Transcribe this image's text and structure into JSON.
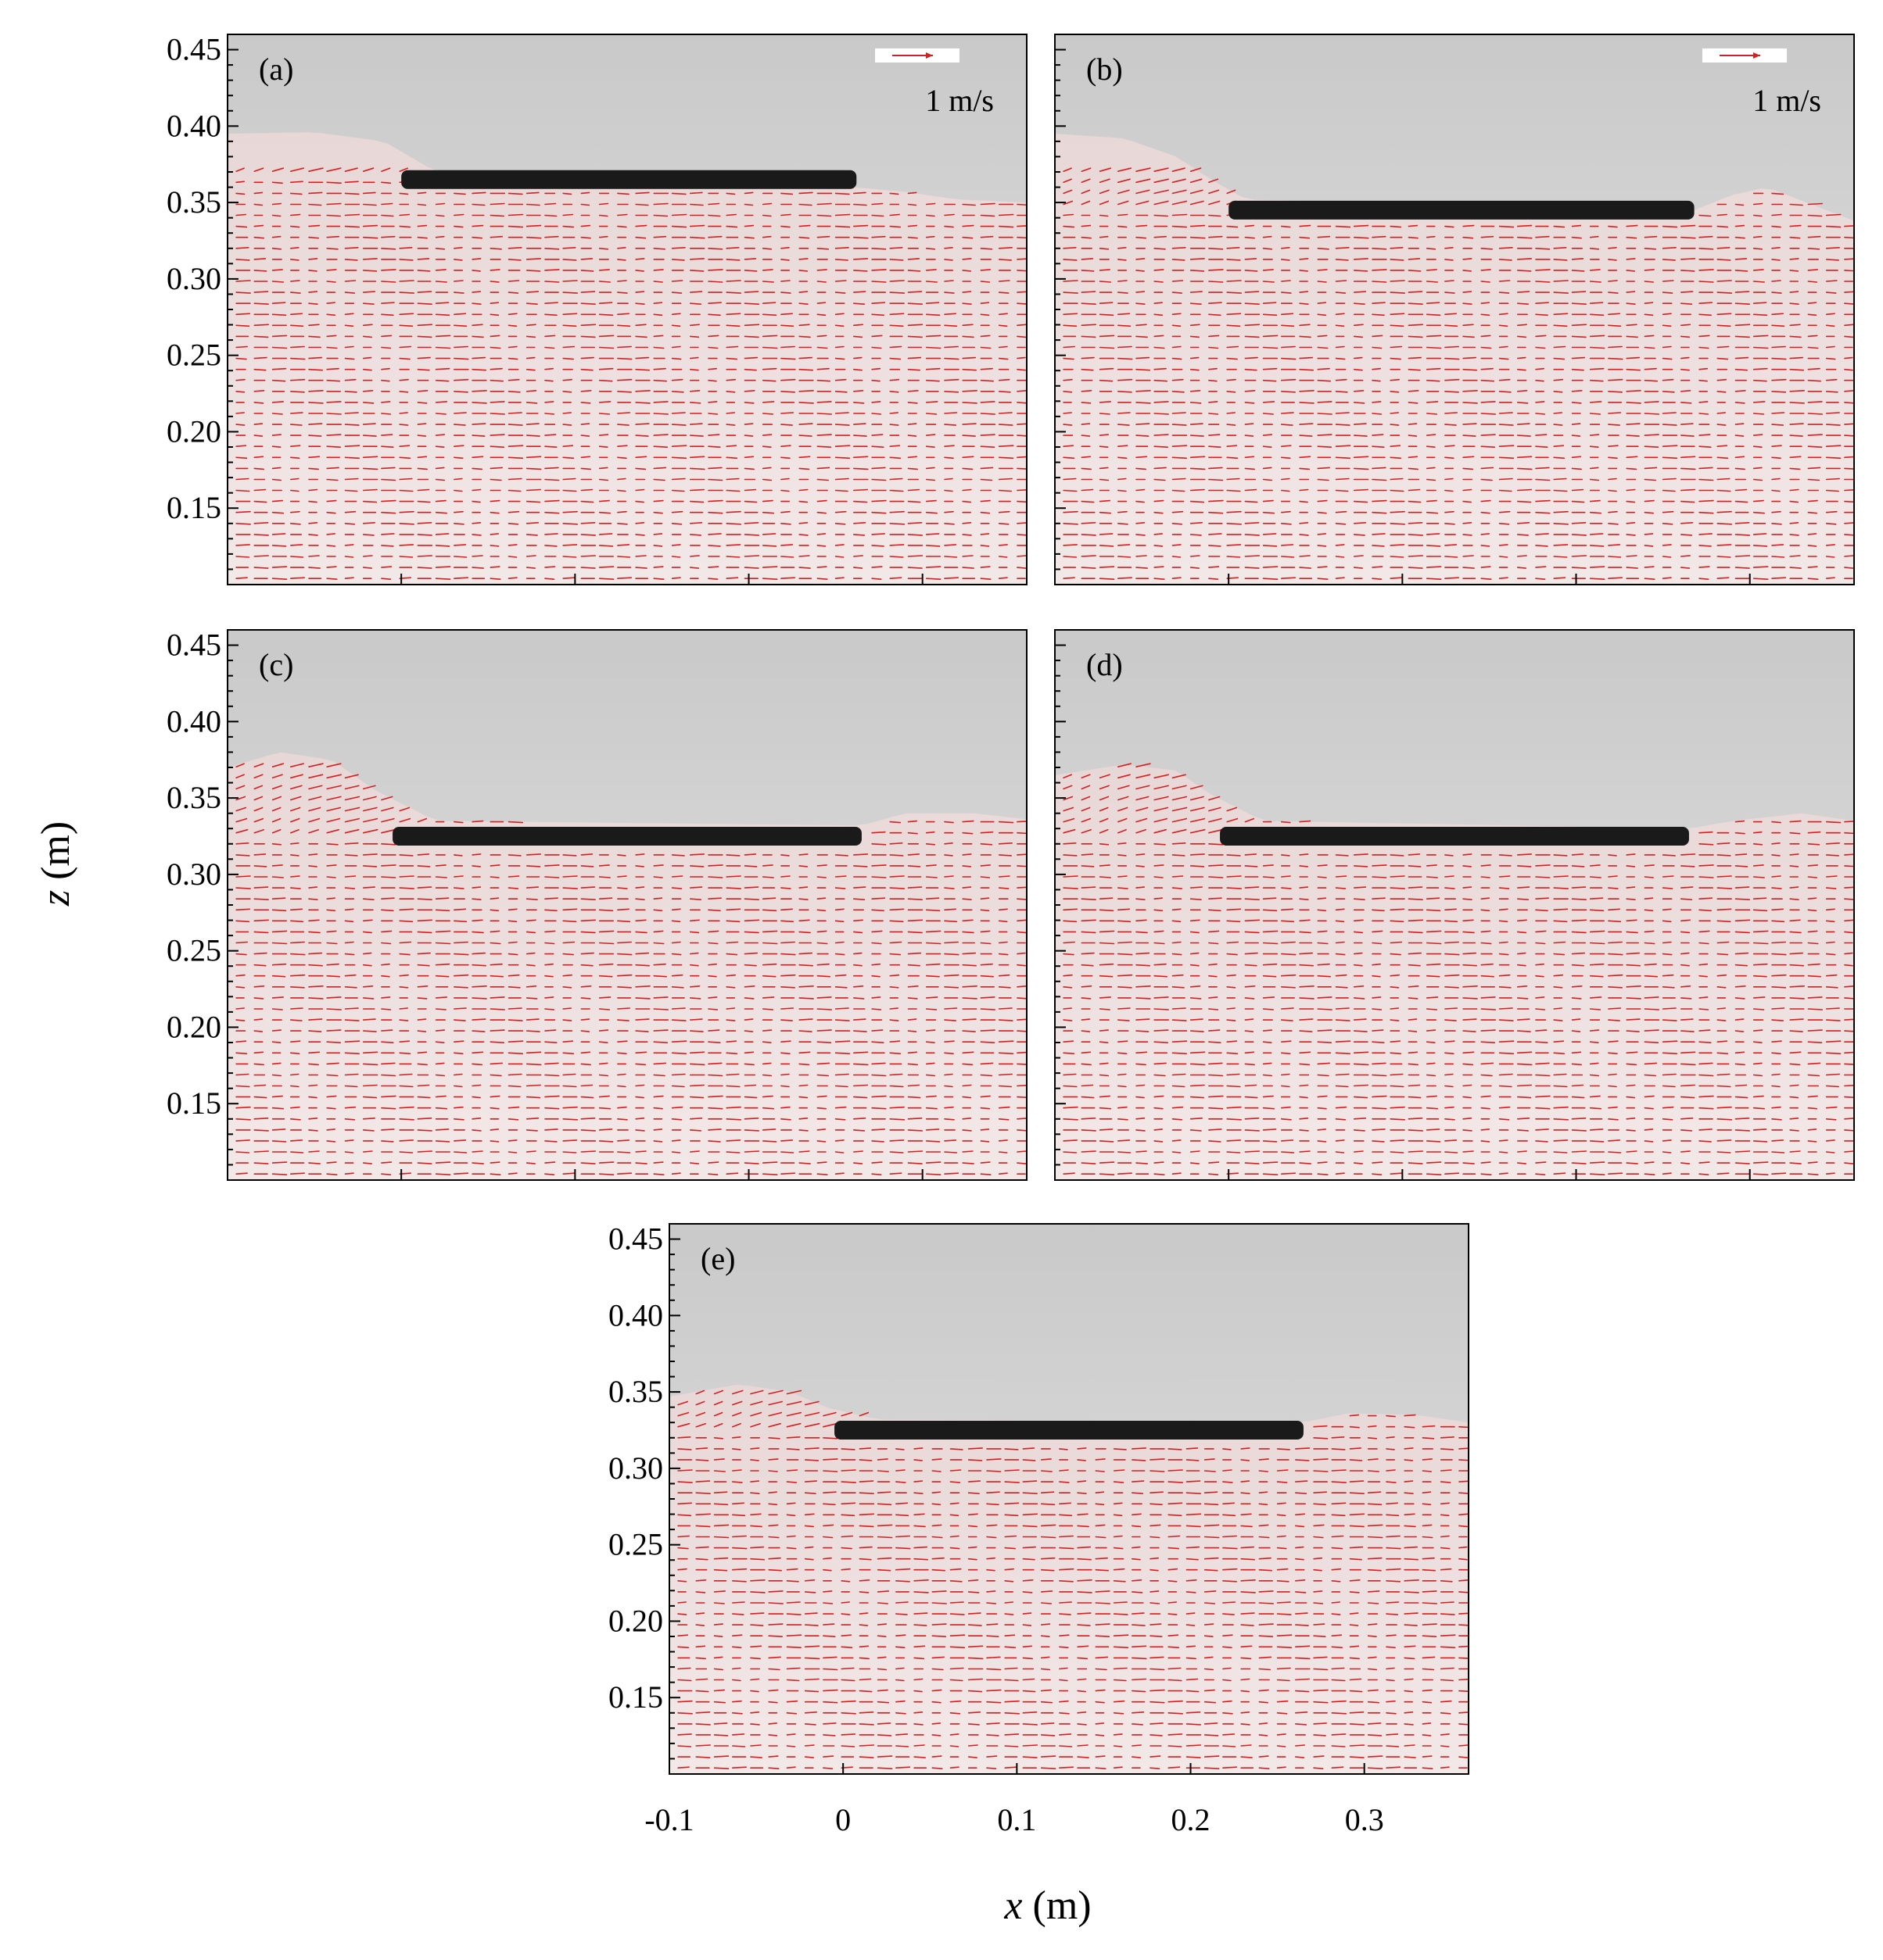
{
  "figure": {
    "xlabel_var": "x",
    "xlabel_unit": " (m)",
    "ylabel_var": "z",
    "ylabel_unit": " (m)"
  },
  "colors": {
    "vectors": "#d32020",
    "plate": "#1a1a1a",
    "background_air": "#d8d8d8",
    "background_water": "#efe2e2"
  },
  "chart_data": [
    {
      "type": "vector-field",
      "panel_label": "(a)",
      "scale_label": "1 m/s",
      "xlim": [
        -0.1,
        0.36
      ],
      "ylim": [
        0.1,
        0.46
      ],
      "yticks": [
        0.15,
        0.2,
        0.25,
        0.3,
        0.35,
        0.4,
        0.45
      ],
      "ytick_labels": [
        "0.15",
        "0.20",
        "0.25",
        "0.30",
        "0.35",
        "0.40",
        "0.45"
      ],
      "xticks": [
        0,
        0.1,
        0.2,
        0.3
      ],
      "xtick_labels": [],
      "plate": {
        "x_start": 0,
        "x_end": 0.262,
        "z": 0.365
      },
      "free_surface": {
        "x": [
          -0.1,
          -0.05,
          -0.01,
          0.005,
          0.02,
          0.26,
          0.29,
          0.32,
          0.36
        ],
        "z": [
          0.395,
          0.396,
          0.39,
          0.38,
          0.37,
          0.36,
          0.357,
          0.352,
          0.35
        ]
      }
    },
    {
      "type": "vector-field",
      "panel_label": "(b)",
      "scale_label": "1 m/s",
      "xlim": [
        -0.1,
        0.36
      ],
      "ylim": [
        0.1,
        0.46
      ],
      "yticks": [
        0.15,
        0.2,
        0.25,
        0.3,
        0.35,
        0.4,
        0.45
      ],
      "ytick_labels": [],
      "xticks": [
        0,
        0.1,
        0.2,
        0.3
      ],
      "xtick_labels": [],
      "plate": {
        "x_start": 0,
        "x_end": 0.268,
        "z": 0.345
      },
      "free_surface": {
        "x": [
          -0.1,
          -0.06,
          -0.03,
          -0.01,
          0.01,
          0.268,
          0.29,
          0.31,
          0.36
        ],
        "z": [
          0.395,
          0.392,
          0.38,
          0.365,
          0.352,
          0.345,
          0.355,
          0.36,
          0.338
        ]
      }
    },
    {
      "type": "vector-field",
      "panel_label": "(c)",
      "xlim": [
        -0.1,
        0.36
      ],
      "ylim": [
        0.1,
        0.46
      ],
      "yticks": [
        0.15,
        0.2,
        0.25,
        0.3,
        0.35,
        0.4,
        0.45
      ],
      "ytick_labels": [
        "0.15",
        "0.20",
        "0.25",
        "0.30",
        "0.35",
        "0.40",
        "0.45"
      ],
      "xticks": [
        0,
        0.1,
        0.2,
        0.3
      ],
      "xtick_labels": [],
      "plate": {
        "x_start": -0.005,
        "x_end": 0.265,
        "z": 0.325
      },
      "free_surface": {
        "x": [
          -0.1,
          -0.07,
          -0.04,
          -0.015,
          0.02,
          0.265,
          0.29,
          0.33,
          0.36
        ],
        "z": [
          0.37,
          0.38,
          0.375,
          0.355,
          0.335,
          0.332,
          0.34,
          0.34,
          0.336
        ]
      }
    },
    {
      "type": "vector-field",
      "panel_label": "(d)",
      "xlim": [
        -0.1,
        0.36
      ],
      "ylim": [
        0.1,
        0.46
      ],
      "yticks": [
        0.15,
        0.2,
        0.25,
        0.3,
        0.35,
        0.4,
        0.45
      ],
      "ytick_labels": [],
      "xticks": [
        0,
        0.1,
        0.2,
        0.3
      ],
      "xtick_labels": [],
      "plate": {
        "x_start": -0.005,
        "x_end": 0.265,
        "z": 0.325
      },
      "free_surface": {
        "x": [
          -0.1,
          -0.06,
          -0.03,
          -0.01,
          0.02,
          0.265,
          0.29,
          0.33,
          0.36
        ],
        "z": [
          0.365,
          0.372,
          0.368,
          0.352,
          0.335,
          0.33,
          0.335,
          0.34,
          0.335
        ]
      }
    },
    {
      "type": "vector-field",
      "panel_label": "(e)",
      "xlim": [
        -0.1,
        0.36
      ],
      "ylim": [
        0.1,
        0.46
      ],
      "yticks": [
        0.15,
        0.2,
        0.25,
        0.3,
        0.35,
        0.4,
        0.45
      ],
      "ytick_labels": [
        "0.15",
        "0.20",
        "0.25",
        "0.30",
        "0.35",
        "0.40",
        "0.45"
      ],
      "xticks": [
        -0.1,
        0,
        0.1,
        0.2,
        0.3
      ],
      "xtick_labels": [
        "-0.1",
        "0",
        "0.1",
        "0.2",
        "0.3"
      ],
      "plate": {
        "x_start": -0.005,
        "x_end": 0.265,
        "z": 0.325
      },
      "free_surface": {
        "x": [
          -0.1,
          -0.06,
          -0.03,
          -0.01,
          0.02,
          0.265,
          0.29,
          0.33,
          0.36
        ],
        "z": [
          0.347,
          0.355,
          0.35,
          0.34,
          0.332,
          0.33,
          0.336,
          0.335,
          0.33
        ]
      }
    }
  ]
}
